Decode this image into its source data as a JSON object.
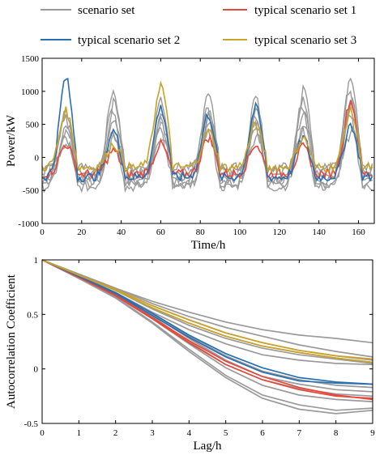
{
  "legend": [
    {
      "label": "scenario set",
      "color": "#9a9a9a"
    },
    {
      "label": "typical scenario set 1",
      "color": "#e8473a"
    },
    {
      "label": "typical scenario set 2",
      "color": "#2a6fb0"
    },
    {
      "label": "typical scenario set 3",
      "color": "#c9a227"
    }
  ],
  "chart_data": [
    {
      "type": "line",
      "xlabel": "Time/h",
      "ylabel": "Power/kW",
      "xlim": [
        0,
        168
      ],
      "ylim": [
        -1000,
        1500
      ],
      "xticks": [
        0,
        20,
        40,
        60,
        80,
        100,
        120,
        140,
        160
      ],
      "yticks": [
        -1000,
        -500,
        0,
        500,
        1000,
        1500
      ],
      "grid": false,
      "series": [
        {
          "group": "scenario set",
          "color": "#9a9a9a",
          "peaks": [
            700,
            1000,
            850,
            1000,
            900,
            900,
            1200,
            400
          ],
          "base": -300,
          "phase": 0
        },
        {
          "group": "scenario set",
          "color": "#9a9a9a",
          "peaks": [
            500,
            850,
            700,
            650,
            700,
            1050,
            900,
            600
          ],
          "base": -400,
          "phase": 2
        },
        {
          "group": "scenario set",
          "color": "#9a9a9a",
          "peaks": [
            400,
            600,
            500,
            600,
            500,
            700,
            800,
            300
          ],
          "base": -200,
          "phase": 1
        },
        {
          "group": "scenario set",
          "color": "#9a9a9a",
          "peaks": [
            300,
            400,
            600,
            400,
            650,
            400,
            600,
            300
          ],
          "base": -450,
          "phase": -1
        },
        {
          "group": "scenario set",
          "color": "#9a9a9a",
          "peaks": [
            200,
            300,
            300,
            500,
            300,
            500,
            400,
            200
          ],
          "base": -150,
          "phase": 3
        },
        {
          "group": "scenario set",
          "color": "#9a9a9a",
          "peaks": [
            600,
            700,
            400,
            700,
            500,
            800,
            1000,
            500
          ],
          "base": -350,
          "phase": -2
        },
        {
          "group": "typical scenario set 1",
          "color": "#e8473a",
          "peaks": [
            200,
            100,
            200,
            300,
            200,
            150,
            850,
            400
          ],
          "base": -250,
          "phase": 0
        },
        {
          "group": "typical scenario set 2",
          "color": "#2a6fb0",
          "peaks": [
            1200,
            400,
            750,
            650,
            750,
            300,
            500,
            500
          ],
          "base": -300,
          "phase": 0
        },
        {
          "group": "typical scenario set 3",
          "color": "#c9a227",
          "peaks": [
            700,
            200,
            1100,
            400,
            500,
            300,
            700,
            850
          ],
          "base": -150,
          "phase": 0
        }
      ]
    },
    {
      "type": "line",
      "xlabel": "Lag/h",
      "ylabel": "Autocorrelation Coefficient",
      "xlim": [
        0,
        9
      ],
      "ylim": [
        -0.5,
        1
      ],
      "xticks": [
        0,
        1,
        2,
        3,
        4,
        5,
        6,
        7,
        8,
        9
      ],
      "yticks": [
        -0.5,
        0,
        0.5,
        1
      ],
      "yticklabels": [
        "-0.5",
        "0",
        "0.5",
        "1"
      ],
      "grid": false,
      "x": [
        0,
        1,
        2,
        3,
        4,
        5,
        6,
        7,
        8,
        9
      ],
      "series": [
        {
          "group": "scenario set",
          "color": "#9a9a9a",
          "values": [
            1,
            0.87,
            0.74,
            0.62,
            0.52,
            0.43,
            0.36,
            0.31,
            0.28,
            0.24
          ]
        },
        {
          "group": "scenario set",
          "color": "#9a9a9a",
          "values": [
            1,
            0.87,
            0.74,
            0.6,
            0.48,
            0.38,
            0.3,
            0.22,
            0.16,
            0.11
          ]
        },
        {
          "group": "scenario set",
          "color": "#9a9a9a",
          "values": [
            1,
            0.86,
            0.73,
            0.58,
            0.45,
            0.33,
            0.24,
            0.17,
            0.12,
            0.08
          ]
        },
        {
          "group": "scenario set",
          "color": "#9a9a9a",
          "values": [
            1,
            0.86,
            0.72,
            0.56,
            0.42,
            0.3,
            0.21,
            0.15,
            0.1,
            0.06
          ]
        },
        {
          "group": "scenario set",
          "color": "#9a9a9a",
          "values": [
            1,
            0.86,
            0.72,
            0.55,
            0.4,
            0.28,
            0.19,
            0.13,
            0.09,
            0.05
          ]
        },
        {
          "group": "scenario set",
          "color": "#9a9a9a",
          "values": [
            1,
            0.85,
            0.7,
            0.52,
            0.36,
            0.23,
            0.13,
            0.08,
            0.05,
            0.04
          ]
        },
        {
          "group": "scenario set",
          "color": "#9a9a9a",
          "values": [
            1,
            0.85,
            0.69,
            0.5,
            0.3,
            0.12,
            -0.02,
            -0.1,
            -0.15,
            -0.17
          ]
        },
        {
          "group": "scenario set",
          "color": "#9a9a9a",
          "values": [
            1,
            0.85,
            0.7,
            0.5,
            0.28,
            0.08,
            -0.07,
            -0.14,
            -0.19,
            -0.21
          ]
        },
        {
          "group": "scenario set",
          "color": "#9a9a9a",
          "values": [
            1,
            0.84,
            0.68,
            0.48,
            0.25,
            0.04,
            -0.1,
            -0.18,
            -0.23,
            -0.25
          ]
        },
        {
          "group": "scenario set",
          "color": "#9a9a9a",
          "values": [
            1,
            0.84,
            0.67,
            0.46,
            0.23,
            0.01,
            -0.15,
            -0.24,
            -0.28,
            -0.3
          ]
        },
        {
          "group": "scenario set",
          "color": "#9a9a9a",
          "values": [
            1,
            0.83,
            0.66,
            0.43,
            0.18,
            -0.06,
            -0.24,
            -0.33,
            -0.38,
            -0.36
          ]
        },
        {
          "group": "scenario set",
          "color": "#9a9a9a",
          "values": [
            1,
            0.83,
            0.65,
            0.42,
            0.16,
            -0.08,
            -0.27,
            -0.37,
            -0.41,
            -0.38
          ]
        },
        {
          "group": "typical scenario set 1",
          "color": "#e8473a",
          "values": [
            1,
            0.84,
            0.67,
            0.46,
            0.24,
            0.04,
            -0.1,
            -0.19,
            -0.25,
            -0.27
          ]
        },
        {
          "group": "typical scenario set 1",
          "color": "#e8473a",
          "values": [
            1,
            0.84,
            0.68,
            0.47,
            0.26,
            0.07,
            -0.07,
            -0.17,
            -0.24,
            -0.28
          ]
        },
        {
          "group": "typical scenario set 2",
          "color": "#2a6fb0",
          "values": [
            1,
            0.85,
            0.69,
            0.49,
            0.29,
            0.11,
            -0.03,
            -0.11,
            -0.13,
            -0.14
          ]
        },
        {
          "group": "typical scenario set 2",
          "color": "#2a6fb0",
          "values": [
            1,
            0.85,
            0.7,
            0.51,
            0.31,
            0.14,
            0.01,
            -0.08,
            -0.12,
            -0.14
          ]
        },
        {
          "group": "typical scenario set 3",
          "color": "#c9a227",
          "values": [
            1,
            0.86,
            0.72,
            0.56,
            0.42,
            0.3,
            0.21,
            0.15,
            0.1,
            0.06
          ]
        },
        {
          "group": "typical scenario set 3",
          "color": "#c9a227",
          "values": [
            1,
            0.86,
            0.73,
            0.58,
            0.45,
            0.33,
            0.24,
            0.17,
            0.12,
            0.09
          ]
        }
      ]
    }
  ]
}
